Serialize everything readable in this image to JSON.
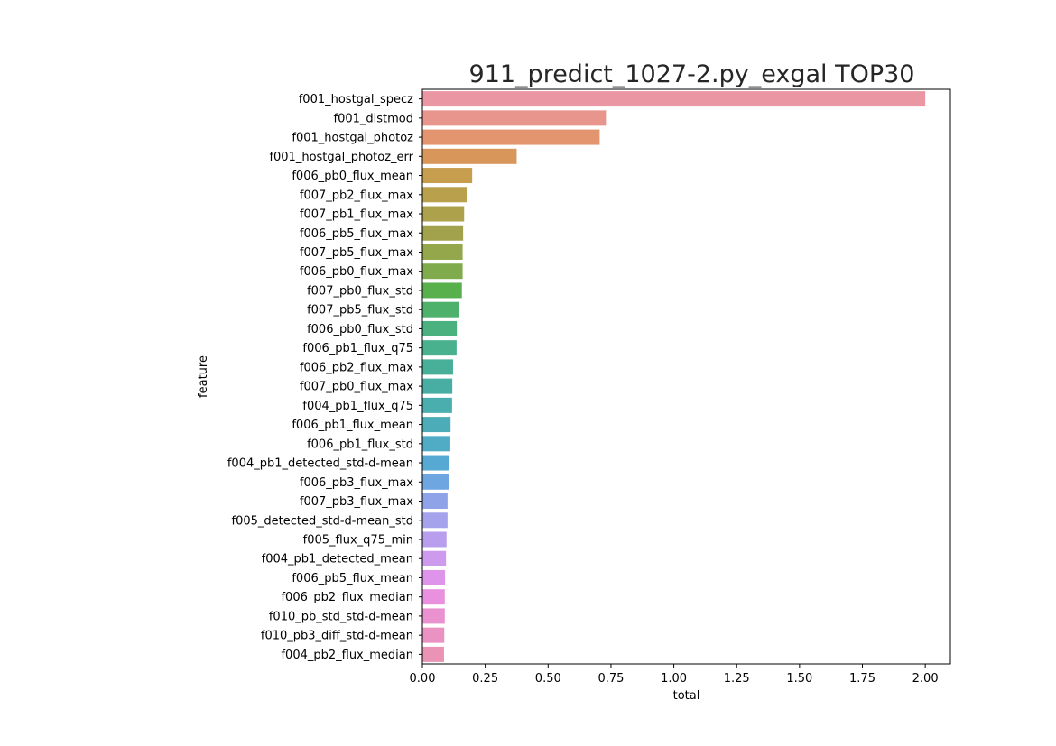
{
  "chart_data": {
    "type": "bar",
    "orientation": "horizontal",
    "title": "911_predict_1027-2.py_exgal TOP30",
    "xlabel": "total",
    "ylabel": "feature",
    "xlim": [
      0,
      2.1
    ],
    "xticks": [
      "0.00",
      "0.25",
      "0.50",
      "0.75",
      "1.00",
      "1.25",
      "1.50",
      "1.75",
      "2.00"
    ],
    "grid": false,
    "categories": [
      "f001_hostgal_specz",
      "f001_distmod",
      "f001_hostgal_photoz",
      "f001_hostgal_photoz_err",
      "f006_pb0_flux_mean",
      "f007_pb2_flux_max",
      "f007_pb1_flux_max",
      "f006_pb5_flux_max",
      "f007_pb5_flux_max",
      "f006_pb0_flux_max",
      "f007_pb0_flux_std",
      "f007_pb5_flux_std",
      "f006_pb0_flux_std",
      "f006_pb1_flux_q75",
      "f006_pb2_flux_max",
      "f007_pb0_flux_max",
      "f004_pb1_flux_q75",
      "f006_pb1_flux_mean",
      "f006_pb1_flux_std",
      "f004_pb1_detected_std-d-mean",
      "f006_pb3_flux_max",
      "f007_pb3_flux_max",
      "f005_detected_std-d-mean_std",
      "f005_flux_q75_min",
      "f004_pb1_detected_mean",
      "f006_pb5_flux_mean",
      "f006_pb2_flux_median",
      "f010_pb_std_std-d-mean",
      "f010_pb3_diff_std-d-mean",
      "f004_pb2_flux_median"
    ],
    "values": [
      2.0,
      0.73,
      0.705,
      0.375,
      0.198,
      0.176,
      0.166,
      0.162,
      0.16,
      0.16,
      0.157,
      0.147,
      0.137,
      0.136,
      0.122,
      0.119,
      0.118,
      0.112,
      0.111,
      0.107,
      0.104,
      0.1,
      0.1,
      0.096,
      0.094,
      0.09,
      0.089,
      0.089,
      0.087,
      0.086
    ],
    "colors": [
      "#ea96a3",
      "#e8958d",
      "#e3956f",
      "#d8965a",
      "#c79e4e",
      "#b9a04d",
      "#aea14c",
      "#a2a24c",
      "#94a74b",
      "#80ab4c",
      "#58b04d",
      "#4db16c",
      "#4ab17f",
      "#49b18d",
      "#48af99",
      "#48aea4",
      "#4aadae",
      "#4cacb8",
      "#4facc4",
      "#55a9d3",
      "#6ea6e1",
      "#8ea3e8",
      "#a5a3ec",
      "#b99eee",
      "#cd9bed",
      "#df94eb",
      "#e991df",
      "#ea92cf",
      "#ea92c1",
      "#ea93b4"
    ]
  }
}
